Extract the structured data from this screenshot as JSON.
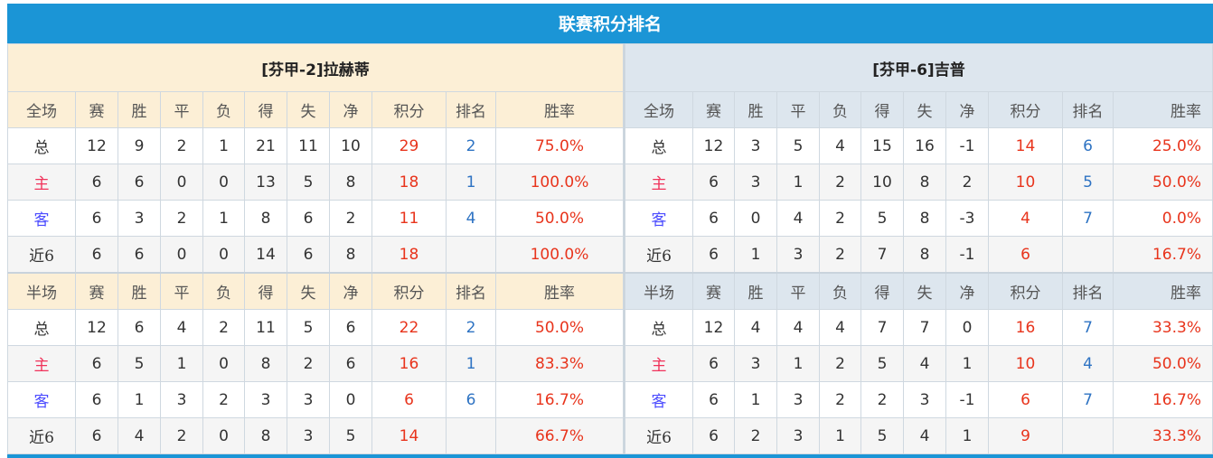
{
  "title": "联赛积分排名",
  "colors": {
    "title_bg": "#1b95d6",
    "points": "#e8341c",
    "rank": "#2e73c3",
    "home_label": "#f0325a",
    "away_label": "#4b4bff"
  },
  "teams": [
    {
      "name": "[芬甲-2]拉赫蒂",
      "sections": [
        {
          "header": [
            "全场",
            "赛",
            "胜",
            "平",
            "负",
            "得",
            "失",
            "净",
            "积分",
            "排名",
            "胜率"
          ],
          "rows": [
            [
              "总",
              "12",
              "9",
              "2",
              "1",
              "21",
              "11",
              "10",
              "29",
              "2",
              "75.0%"
            ],
            [
              "主",
              "6",
              "6",
              "0",
              "0",
              "13",
              "5",
              "8",
              "18",
              "1",
              "100.0%"
            ],
            [
              "客",
              "6",
              "3",
              "2",
              "1",
              "8",
              "6",
              "2",
              "11",
              "4",
              "50.0%"
            ],
            [
              "近6",
              "6",
              "6",
              "0",
              "0",
              "14",
              "6",
              "8",
              "18",
              "",
              "100.0%"
            ]
          ]
        },
        {
          "header": [
            "半场",
            "赛",
            "胜",
            "平",
            "负",
            "得",
            "失",
            "净",
            "积分",
            "排名",
            "胜率"
          ],
          "rows": [
            [
              "总",
              "12",
              "6",
              "4",
              "2",
              "11",
              "5",
              "6",
              "22",
              "2",
              "50.0%"
            ],
            [
              "主",
              "6",
              "5",
              "1",
              "0",
              "8",
              "2",
              "6",
              "16",
              "1",
              "83.3%"
            ],
            [
              "客",
              "6",
              "1",
              "3",
              "2",
              "3",
              "3",
              "0",
              "6",
              "6",
              "16.7%"
            ],
            [
              "近6",
              "6",
              "4",
              "2",
              "0",
              "8",
              "3",
              "5",
              "14",
              "",
              "66.7%"
            ]
          ]
        }
      ]
    },
    {
      "name": "[芬甲-6]吉普",
      "sections": [
        {
          "header": [
            "全场",
            "赛",
            "胜",
            "平",
            "负",
            "得",
            "失",
            "净",
            "积分",
            "排名",
            "胜率"
          ],
          "rows": [
            [
              "总",
              "12",
              "3",
              "5",
              "4",
              "15",
              "16",
              "-1",
              "14",
              "6",
              "25.0%"
            ],
            [
              "主",
              "6",
              "3",
              "1",
              "2",
              "10",
              "8",
              "2",
              "10",
              "5",
              "50.0%"
            ],
            [
              "客",
              "6",
              "0",
              "4",
              "2",
              "5",
              "8",
              "-3",
              "4",
              "7",
              "0.0%"
            ],
            [
              "近6",
              "6",
              "1",
              "3",
              "2",
              "7",
              "8",
              "-1",
              "6",
              "",
              "16.7%"
            ]
          ]
        },
        {
          "header": [
            "半场",
            "赛",
            "胜",
            "平",
            "负",
            "得",
            "失",
            "净",
            "积分",
            "排名",
            "胜率"
          ],
          "rows": [
            [
              "总",
              "12",
              "4",
              "4",
              "4",
              "7",
              "7",
              "0",
              "16",
              "7",
              "33.3%"
            ],
            [
              "主",
              "6",
              "3",
              "1",
              "2",
              "5",
              "4",
              "1",
              "10",
              "4",
              "50.0%"
            ],
            [
              "客",
              "6",
              "1",
              "3",
              "2",
              "2",
              "3",
              "-1",
              "6",
              "7",
              "16.7%"
            ],
            [
              "近6",
              "6",
              "2",
              "3",
              "1",
              "5",
              "4",
              "1",
              "9",
              "",
              "33.3%"
            ]
          ]
        }
      ]
    }
  ]
}
